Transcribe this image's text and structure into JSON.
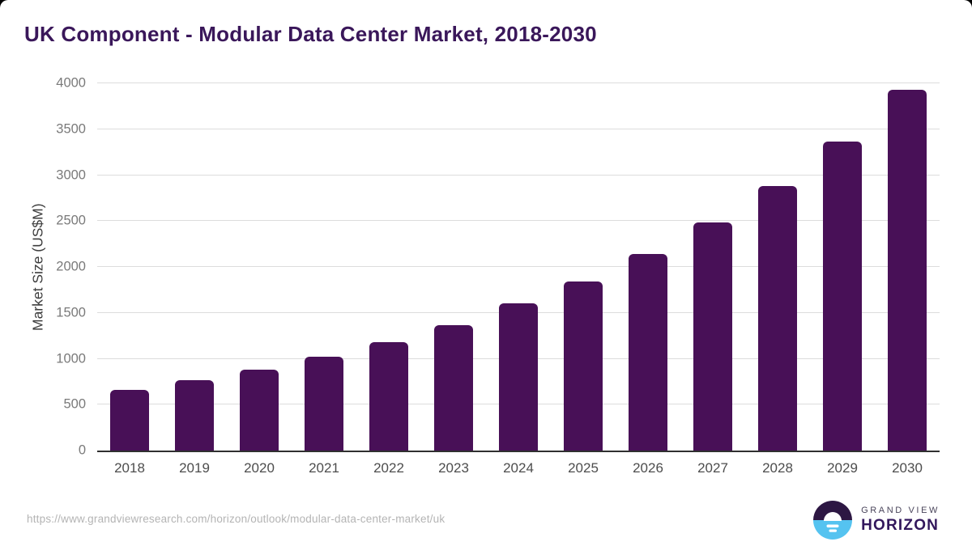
{
  "title": "UK Component - Modular Data Center Market, 2018-2030",
  "chart_data": {
    "type": "bar",
    "categories": [
      "2018",
      "2019",
      "2020",
      "2021",
      "2022",
      "2023",
      "2024",
      "2025",
      "2026",
      "2027",
      "2028",
      "2029",
      "2030"
    ],
    "values": [
      665,
      765,
      885,
      1020,
      1185,
      1365,
      1600,
      1845,
      2140,
      2485,
      2885,
      3370,
      3930
    ],
    "title": "UK Component - Modular Data Center Market, 2018-2030",
    "xlabel": "",
    "ylabel": "Market Size (US$M)",
    "ylim": [
      0,
      4000
    ],
    "yticks": [
      0,
      500,
      1000,
      1500,
      2000,
      2500,
      3000,
      3500,
      4000
    ],
    "grid": true,
    "legend": "none",
    "bar_color": "#481057"
  },
  "footer": {
    "source_url": "https://www.grandviewresearch.com/horizon/outlook/modular-data-center-market/uk"
  },
  "logo": {
    "line1": "GRAND VIEW",
    "line2": "HORIZON"
  },
  "colors": {
    "title_text": "#3a175a",
    "bar": "#481057",
    "gridline": "#dcdcdc",
    "axis_line": "#303030",
    "ytick_text": "#7a7a7a",
    "xtick_text": "#4d4d4d",
    "url_text": "#b4b4b4",
    "logo_purple": "#2d1743",
    "logo_blue": "#55c3f0"
  }
}
